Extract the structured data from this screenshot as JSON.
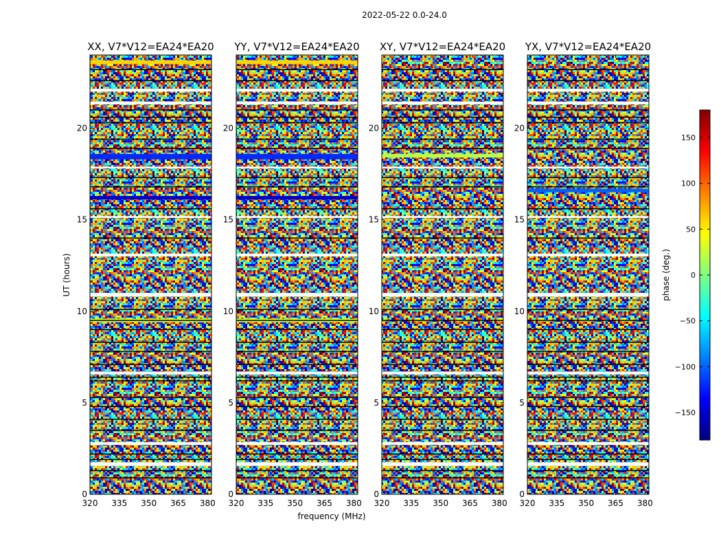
{
  "chart_data": {
    "type": "heatmap",
    "title": "2022-05-22 0.0-24.0",
    "xlabel": "frequency (MHz)",
    "ylabel": "UT (hours)",
    "xlim": [
      320,
      382
    ],
    "ylim": [
      0,
      24
    ],
    "x_ticks": [
      320,
      335,
      350,
      365,
      380
    ],
    "y_ticks": [
      0,
      5,
      10,
      15,
      20
    ],
    "panels": [
      {
        "title": "XX, V7*V12=EA24*EA20",
        "bands": [
          [
            18.3,
            18.6,
            -120
          ],
          [
            16.1,
            16.3,
            -150
          ],
          [
            9.4,
            9.6,
            30
          ],
          [
            23.5,
            23.7,
            60
          ]
        ]
      },
      {
        "title": "YY, V7*V12=EA24*EA20",
        "bands": [
          [
            18.3,
            18.6,
            -120
          ],
          [
            16.1,
            16.3,
            -150
          ],
          [
            9.4,
            9.6,
            30
          ],
          [
            23.5,
            23.7,
            60
          ]
        ]
      },
      {
        "title": "XY, V7*V12=EA24*EA20",
        "bands": [
          [
            18.4,
            18.6,
            20
          ]
        ]
      },
      {
        "title": "YX, V7*V12=EA24*EA20",
        "bands": [
          [
            16.5,
            16.7,
            -100
          ]
        ]
      }
    ],
    "gaps_hours": [
      [
        22.0,
        22.15
      ],
      [
        21.3,
        21.45
      ],
      [
        17.8,
        17.9
      ],
      [
        15.1,
        15.2
      ],
      [
        13.0,
        13.15
      ],
      [
        10.8,
        11.0
      ],
      [
        6.55,
        6.7
      ],
      [
        2.7,
        2.85
      ],
      [
        1.55,
        1.75
      ]
    ],
    "dark_lines_hours": [
      23.2,
      22.6,
      21.0,
      20.6,
      20.3,
      19.4,
      18.9,
      17.3,
      16.8,
      15.6,
      14.0,
      10.1,
      9.5,
      9.0,
      8.3,
      7.8,
      7.1,
      6.4,
      6.2,
      5.3,
      4.8,
      4.1,
      3.5,
      2.2,
      1.9,
      1.3,
      0.9
    ],
    "colorbar": {
      "label": "phase (deg.)",
      "range": [
        -180,
        180
      ],
      "ticks": [
        150,
        100,
        50,
        0,
        -50,
        -100,
        -150
      ],
      "tick_labels": [
        "150",
        "100",
        "50",
        "0",
        "−50",
        "−100",
        "−150"
      ]
    }
  }
}
